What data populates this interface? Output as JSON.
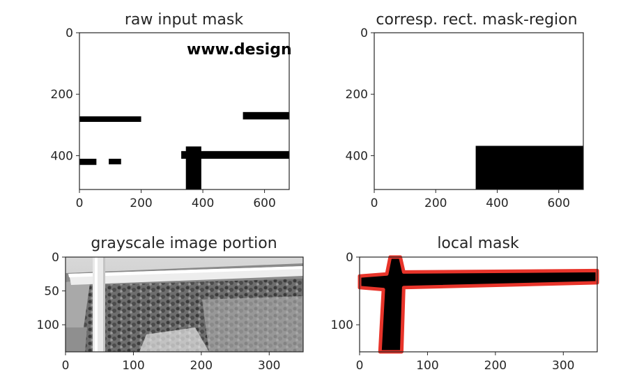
{
  "chart_data": [
    {
      "type": "image",
      "title": "raw input mask",
      "xlim": [
        0,
        680
      ],
      "ylim": [
        510,
        0
      ],
      "xticks": [
        0,
        200,
        400,
        600
      ],
      "yticks": [
        0,
        200,
        400
      ],
      "overlay_text": "www.design",
      "black_regions": [
        {
          "shape": "rect",
          "x": [
            0,
            200
          ],
          "y": [
            272,
            290
          ]
        },
        {
          "shape": "rect",
          "x": [
            530,
            680
          ],
          "y": [
            258,
            282
          ]
        },
        {
          "shape": "rect",
          "x": [
            0,
            55
          ],
          "y": [
            410,
            430
          ]
        },
        {
          "shape": "rect",
          "x": [
            95,
            135
          ],
          "y": [
            410,
            428
          ]
        },
        {
          "shape": "rect",
          "x": [
            330,
            680
          ],
          "y": [
            385,
            410
          ]
        },
        {
          "shape": "rect",
          "x": [
            345,
            395
          ],
          "y": [
            370,
            510
          ]
        }
      ]
    },
    {
      "type": "image",
      "title": "corresp. rect. mask-region",
      "xlim": [
        0,
        680
      ],
      "ylim": [
        510,
        0
      ],
      "xticks": [
        0,
        200,
        400,
        600
      ],
      "yticks": [
        0,
        200,
        400
      ],
      "black_regions": [
        {
          "shape": "rect",
          "x": [
            330,
            680
          ],
          "y": [
            368,
            510
          ]
        }
      ]
    },
    {
      "type": "image",
      "title": "grayscale image portion",
      "xlim": [
        0,
        350
      ],
      "ylim": [
        140,
        0
      ],
      "xticks": [
        0,
        100,
        200,
        300
      ],
      "yticks": [
        0,
        50,
        100
      ],
      "colormap": "grayscale"
    },
    {
      "type": "image",
      "title": "local mask",
      "xlim": [
        0,
        350
      ],
      "ylim": [
        140,
        0
      ],
      "xticks": [
        0,
        100,
        200,
        300
      ],
      "yticks": [
        0,
        100
      ],
      "contour_color": "#e8342a",
      "black_regions": [
        {
          "shape": "poly",
          "points": [
            [
              0,
              28
            ],
            [
              40,
              25
            ],
            [
              45,
              0
            ],
            [
              60,
              0
            ],
            [
              65,
              22
            ],
            [
              350,
              20
            ],
            [
              350,
              38
            ],
            [
              65,
              45
            ],
            [
              62,
              140
            ],
            [
              30,
              140
            ],
            [
              35,
              48
            ],
            [
              0,
              45
            ]
          ]
        }
      ]
    }
  ],
  "colors": {
    "axis": "#262626",
    "mask": "#000000",
    "contour": "#e8342a"
  }
}
